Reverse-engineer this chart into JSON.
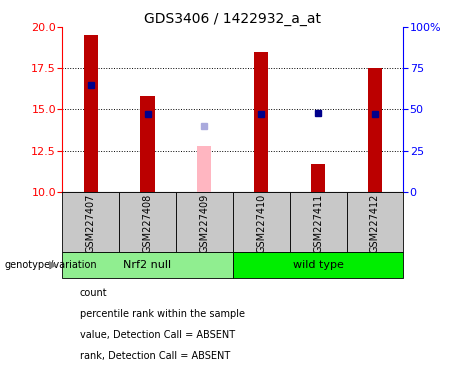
{
  "title": "GDS3406 / 1422932_a_at",
  "samples": [
    "GSM227407",
    "GSM227408",
    "GSM227409",
    "GSM227410",
    "GSM227411",
    "GSM227412"
  ],
  "count_values": [
    19.5,
    15.8,
    null,
    18.5,
    11.7,
    17.5
  ],
  "count_absent": [
    null,
    null,
    12.8,
    null,
    null,
    null
  ],
  "rank_values": [
    65,
    47,
    null,
    47,
    48,
    47
  ],
  "rank_absent": [
    null,
    null,
    40,
    null,
    null,
    null
  ],
  "ylim_left": [
    10,
    20
  ],
  "ylim_right": [
    0,
    100
  ],
  "yticks_left": [
    10,
    12.5,
    15,
    17.5,
    20
  ],
  "yticks_right": [
    0,
    25,
    50,
    75,
    100
  ],
  "ytick_labels_right": [
    "0",
    "25",
    "50",
    "75",
    "100%"
  ],
  "groups": [
    {
      "label": "Nrf2 null",
      "indices": [
        0,
        1,
        2
      ],
      "color": "#90EE90"
    },
    {
      "label": "wild type",
      "indices": [
        3,
        4,
        5
      ],
      "color": "#00EE00"
    }
  ],
  "bar_color_present": "#BB0000",
  "bar_color_absent": "#FFB6C1",
  "dot_color_present": "#00008B",
  "dot_color_absent": "#AAAADD",
  "group_label_text": "genotype/variation",
  "legend_items": [
    {
      "color": "#BB0000",
      "label": "count"
    },
    {
      "color": "#00008B",
      "label": "percentile rank within the sample"
    },
    {
      "color": "#FFB6C1",
      "label": "value, Detection Call = ABSENT"
    },
    {
      "color": "#AAAADD",
      "label": "rank, Detection Call = ABSENT"
    }
  ],
  "background_color": "#FFFFFF",
  "label_area_color": "#C8C8C8",
  "bar_width": 0.25,
  "title_fontsize": 10,
  "tick_fontsize": 8,
  "sample_fontsize": 7,
  "legend_fontsize": 7,
  "group_fontsize": 8
}
